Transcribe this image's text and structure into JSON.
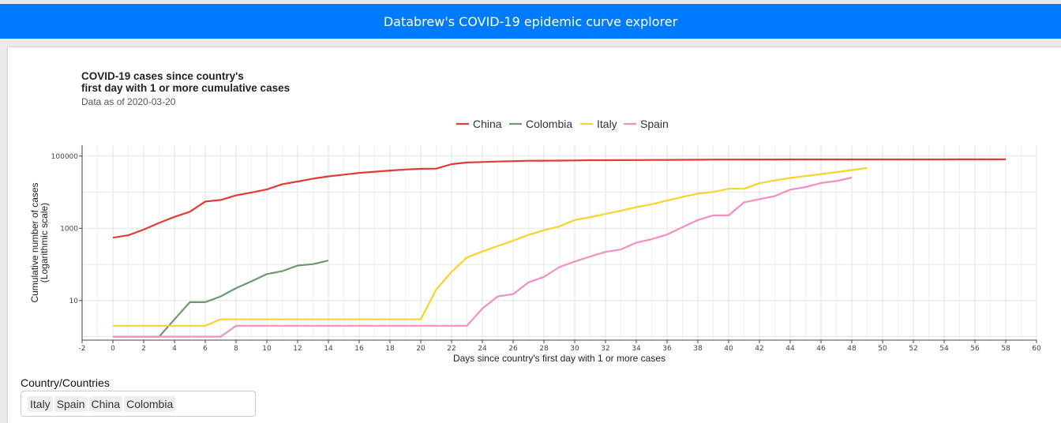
{
  "header": {
    "title": "Databrew's COVID-19 epidemic curve explorer"
  },
  "selector": {
    "label": "Country/Countries",
    "selected": [
      "Italy",
      "Spain",
      "China",
      "Colombia"
    ]
  },
  "chart_data": {
    "type": "line",
    "title": "COVID-19 cases since country's\nfirst day with 1 or more cumulative cases",
    "subtitle": "Data as of 2020-03-20",
    "xlabel": "Days since country's first day with 1 or more cases",
    "ylabel": "Cumulative number of cases\n(Logarithmic scale)",
    "y_scale": "log10",
    "xlim": [
      -2,
      60
    ],
    "ylim": [
      0.8,
      200000
    ],
    "x_ticks": [
      -2,
      0,
      2,
      4,
      6,
      8,
      10,
      12,
      14,
      16,
      18,
      20,
      22,
      24,
      26,
      28,
      30,
      32,
      34,
      36,
      38,
      40,
      42,
      44,
      46,
      48,
      50,
      52,
      54,
      56,
      58,
      60
    ],
    "y_ticks": [
      10,
      1000,
      100000
    ],
    "y_tick_labels": [
      "10",
      "1000",
      "100000"
    ],
    "grid": true,
    "legend_position": "top",
    "series": [
      {
        "name": "China",
        "color": "#e13b35",
        "x": [
          0,
          1,
          2,
          3,
          4,
          5,
          6,
          7,
          8,
          9,
          10,
          11,
          12,
          13,
          14,
          15,
          16,
          17,
          18,
          19,
          20,
          21,
          22,
          23,
          24,
          25,
          26,
          27,
          28,
          29,
          30,
          31,
          32,
          33,
          34,
          35,
          36,
          37,
          38,
          39,
          40,
          41,
          42,
          43,
          44,
          45,
          46,
          47,
          48,
          49,
          50,
          51,
          52,
          53,
          54,
          55,
          56,
          57,
          58
        ],
        "y": [
          548,
          643,
          920,
          1406,
          2075,
          2877,
          5509,
          6087,
          8141,
          9802,
          11891,
          16630,
          19716,
          23707,
          27440,
          30587,
          34110,
          36814,
          39829,
          42354,
          44386,
          44759,
          59895,
          66358,
          68413,
          70513,
          72434,
          74211,
          74619,
          75077,
          75550,
          77001,
          77022,
          77241,
          77754,
          78166,
          78600,
          78928,
          79356,
          79932,
          80136,
          80261,
          80386,
          80537,
          80690,
          80770,
          80823,
          80860,
          80887,
          80921,
          80932,
          80945,
          80977,
          81003,
          81033,
          81058,
          81102,
          81156,
          81250
        ]
      },
      {
        "name": "Colombia",
        "color": "#6b9a6e",
        "x": [
          0,
          1,
          2,
          3,
          4,
          5,
          6,
          7,
          8,
          9,
          10,
          11,
          12,
          13,
          14
        ],
        "y": [
          1,
          1,
          1,
          1,
          3,
          9,
          9,
          13,
          22,
          34,
          54,
          65,
          93,
          102,
          128
        ]
      },
      {
        "name": "Italy",
        "color": "#f6d42a",
        "x": [
          0,
          1,
          2,
          3,
          4,
          5,
          6,
          7,
          8,
          9,
          10,
          11,
          12,
          13,
          14,
          15,
          16,
          17,
          18,
          19,
          20,
          21,
          22,
          23,
          24,
          25,
          26,
          27,
          28,
          29,
          30,
          31,
          32,
          33,
          34,
          35,
          36,
          37,
          38,
          39,
          40,
          41,
          42,
          43,
          44,
          45,
          46,
          47,
          48,
          49
        ],
        "y": [
          2,
          2,
          2,
          2,
          2,
          2,
          2,
          3,
          3,
          3,
          3,
          3,
          3,
          3,
          3,
          3,
          3,
          3,
          3,
          3,
          3,
          20,
          62,
          155,
          229,
          322,
          453,
          655,
          888,
          1128,
          1694,
          2036,
          2502,
          3089,
          3858,
          4636,
          5883,
          7375,
          9172,
          10149,
          12462,
          12462,
          17660,
          21157,
          24747,
          27980,
          31506,
          35713,
          41035,
          47021
        ]
      },
      {
        "name": "Spain",
        "color": "#f48fc0",
        "x": [
          0,
          1,
          2,
          3,
          4,
          5,
          6,
          7,
          8,
          9,
          10,
          11,
          12,
          13,
          14,
          15,
          16,
          17,
          18,
          19,
          20,
          21,
          22,
          23,
          24,
          25,
          26,
          27,
          28,
          29,
          30,
          31,
          32,
          33,
          34,
          35,
          36,
          37,
          38,
          39,
          40,
          41,
          42,
          43,
          44,
          45,
          46,
          47,
          48
        ],
        "y": [
          1,
          1,
          1,
          1,
          1,
          1,
          1,
          1,
          2,
          2,
          2,
          2,
          2,
          2,
          2,
          2,
          2,
          2,
          2,
          2,
          2,
          2,
          2,
          2,
          6,
          13,
          15,
          32,
          45,
          84,
          120,
          165,
          222,
          259,
          400,
          500,
          673,
          1073,
          1695,
          2277,
          2277,
          5232,
          6391,
          7798,
          11748,
          13910,
          17963,
          20410,
          25374
        ]
      }
    ]
  }
}
